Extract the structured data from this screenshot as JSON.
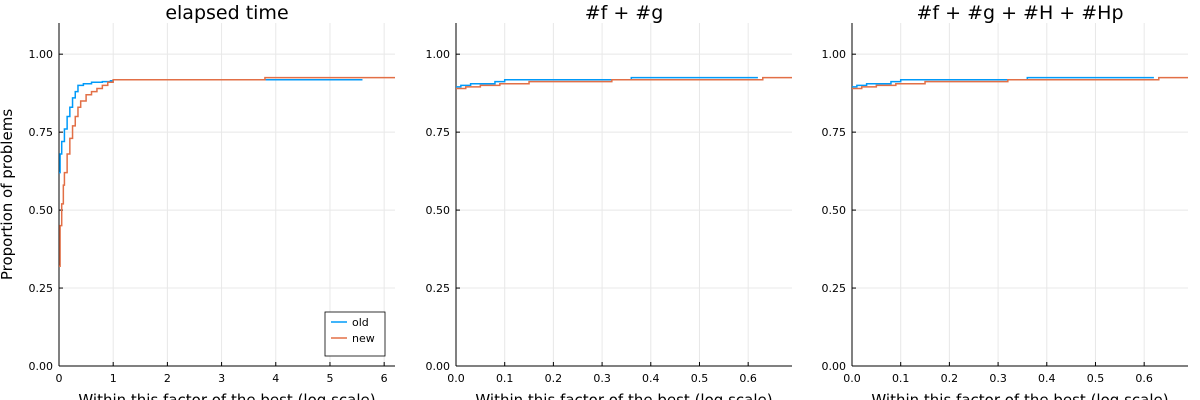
{
  "chart_data": [
    {
      "type": "line",
      "step": true,
      "title": "elapsed time",
      "xlabel": "Within this factor of the best (log scale)",
      "ylabel": "Proportion of problems",
      "xlim": [
        0,
        6.2
      ],
      "ylim": [
        0,
        1.1
      ],
      "xticks": [
        0,
        1,
        2,
        3,
        4,
        5,
        6
      ],
      "xtick_labels": [
        "0",
        "1",
        "2",
        "3",
        "4",
        "5",
        "6"
      ],
      "yticks": [
        0,
        0.25,
        0.5,
        0.75,
        1.0
      ],
      "ytick_labels": [
        "0.00",
        "0.25",
        "0.50",
        "0.75",
        "1.00"
      ],
      "grid": true,
      "legend": "bottom-right",
      "series": [
        {
          "name": "old",
          "color": "#009AF9",
          "x": [
            0,
            0.02,
            0.05,
            0.1,
            0.15,
            0.2,
            0.25,
            0.3,
            0.35,
            0.45,
            0.6,
            0.8,
            0.95,
            1.0,
            3.0,
            5.6
          ],
          "y": [
            0.62,
            0.68,
            0.72,
            0.76,
            0.8,
            0.83,
            0.86,
            0.88,
            0.9,
            0.905,
            0.91,
            0.912,
            0.915,
            0.918,
            0.918,
            0.918
          ]
        },
        {
          "name": "new",
          "color": "#E26F46",
          "x": [
            0,
            0.02,
            0.05,
            0.08,
            0.1,
            0.15,
            0.2,
            0.25,
            0.3,
            0.35,
            0.4,
            0.5,
            0.6,
            0.7,
            0.8,
            0.9,
            1.0,
            3.8,
            6.2
          ],
          "y": [
            0.32,
            0.45,
            0.52,
            0.58,
            0.62,
            0.68,
            0.73,
            0.77,
            0.8,
            0.83,
            0.85,
            0.87,
            0.88,
            0.89,
            0.9,
            0.91,
            0.918,
            0.925,
            0.925
          ]
        }
      ]
    },
    {
      "type": "line",
      "step": true,
      "title": "#f + #g",
      "xlabel": "Within this factor of the best (log scale)",
      "ylabel": "",
      "xlim": [
        0,
        0.69
      ],
      "ylim": [
        0,
        1.1
      ],
      "xticks": [
        0,
        0.1,
        0.2,
        0.3,
        0.4,
        0.5,
        0.6
      ],
      "xtick_labels": [
        "0.0",
        "0.1",
        "0.2",
        "0.3",
        "0.4",
        "0.5",
        "0.6"
      ],
      "yticks": [
        0,
        0.25,
        0.5,
        0.75,
        1.0
      ],
      "ytick_labels": [
        "0.00",
        "0.25",
        "0.50",
        "0.75",
        "1.00"
      ],
      "grid": true,
      "series": [
        {
          "name": "",
          "color": "#009AF9",
          "x": [
            0,
            0.01,
            0.03,
            0.08,
            0.1,
            0.2,
            0.36,
            0.62
          ],
          "y": [
            0.895,
            0.9,
            0.905,
            0.912,
            0.918,
            0.918,
            0.925,
            0.925
          ]
        },
        {
          "name": "",
          "color": "#E26F46",
          "x": [
            0,
            0.02,
            0.05,
            0.09,
            0.15,
            0.32,
            0.63,
            0.69
          ],
          "y": [
            0.89,
            0.895,
            0.9,
            0.905,
            0.912,
            0.918,
            0.925,
            0.925
          ]
        }
      ]
    },
    {
      "type": "line",
      "step": true,
      "title": "#f + #g + #H + #Hp",
      "xlabel": "Within this factor of the best (log scale)",
      "ylabel": "",
      "xlim": [
        0,
        0.69
      ],
      "ylim": [
        0,
        1.1
      ],
      "xticks": [
        0,
        0.1,
        0.2,
        0.3,
        0.4,
        0.5,
        0.6
      ],
      "xtick_labels": [
        "0.0",
        "0.1",
        "0.2",
        "0.3",
        "0.4",
        "0.5",
        "0.6"
      ],
      "yticks": [
        0,
        0.25,
        0.5,
        0.75,
        1.0
      ],
      "ytick_labels": [
        "0.00",
        "0.25",
        "0.50",
        "0.75",
        "1.00"
      ],
      "grid": true,
      "series": [
        {
          "name": "",
          "color": "#009AF9",
          "x": [
            0,
            0.01,
            0.03,
            0.08,
            0.1,
            0.2,
            0.36,
            0.62
          ],
          "y": [
            0.895,
            0.9,
            0.905,
            0.912,
            0.918,
            0.918,
            0.925,
            0.925
          ]
        },
        {
          "name": "",
          "color": "#E26F46",
          "x": [
            0,
            0.02,
            0.05,
            0.09,
            0.15,
            0.32,
            0.63,
            0.69
          ],
          "y": [
            0.89,
            0.895,
            0.9,
            0.905,
            0.912,
            0.918,
            0.925,
            0.925
          ]
        }
      ]
    }
  ]
}
